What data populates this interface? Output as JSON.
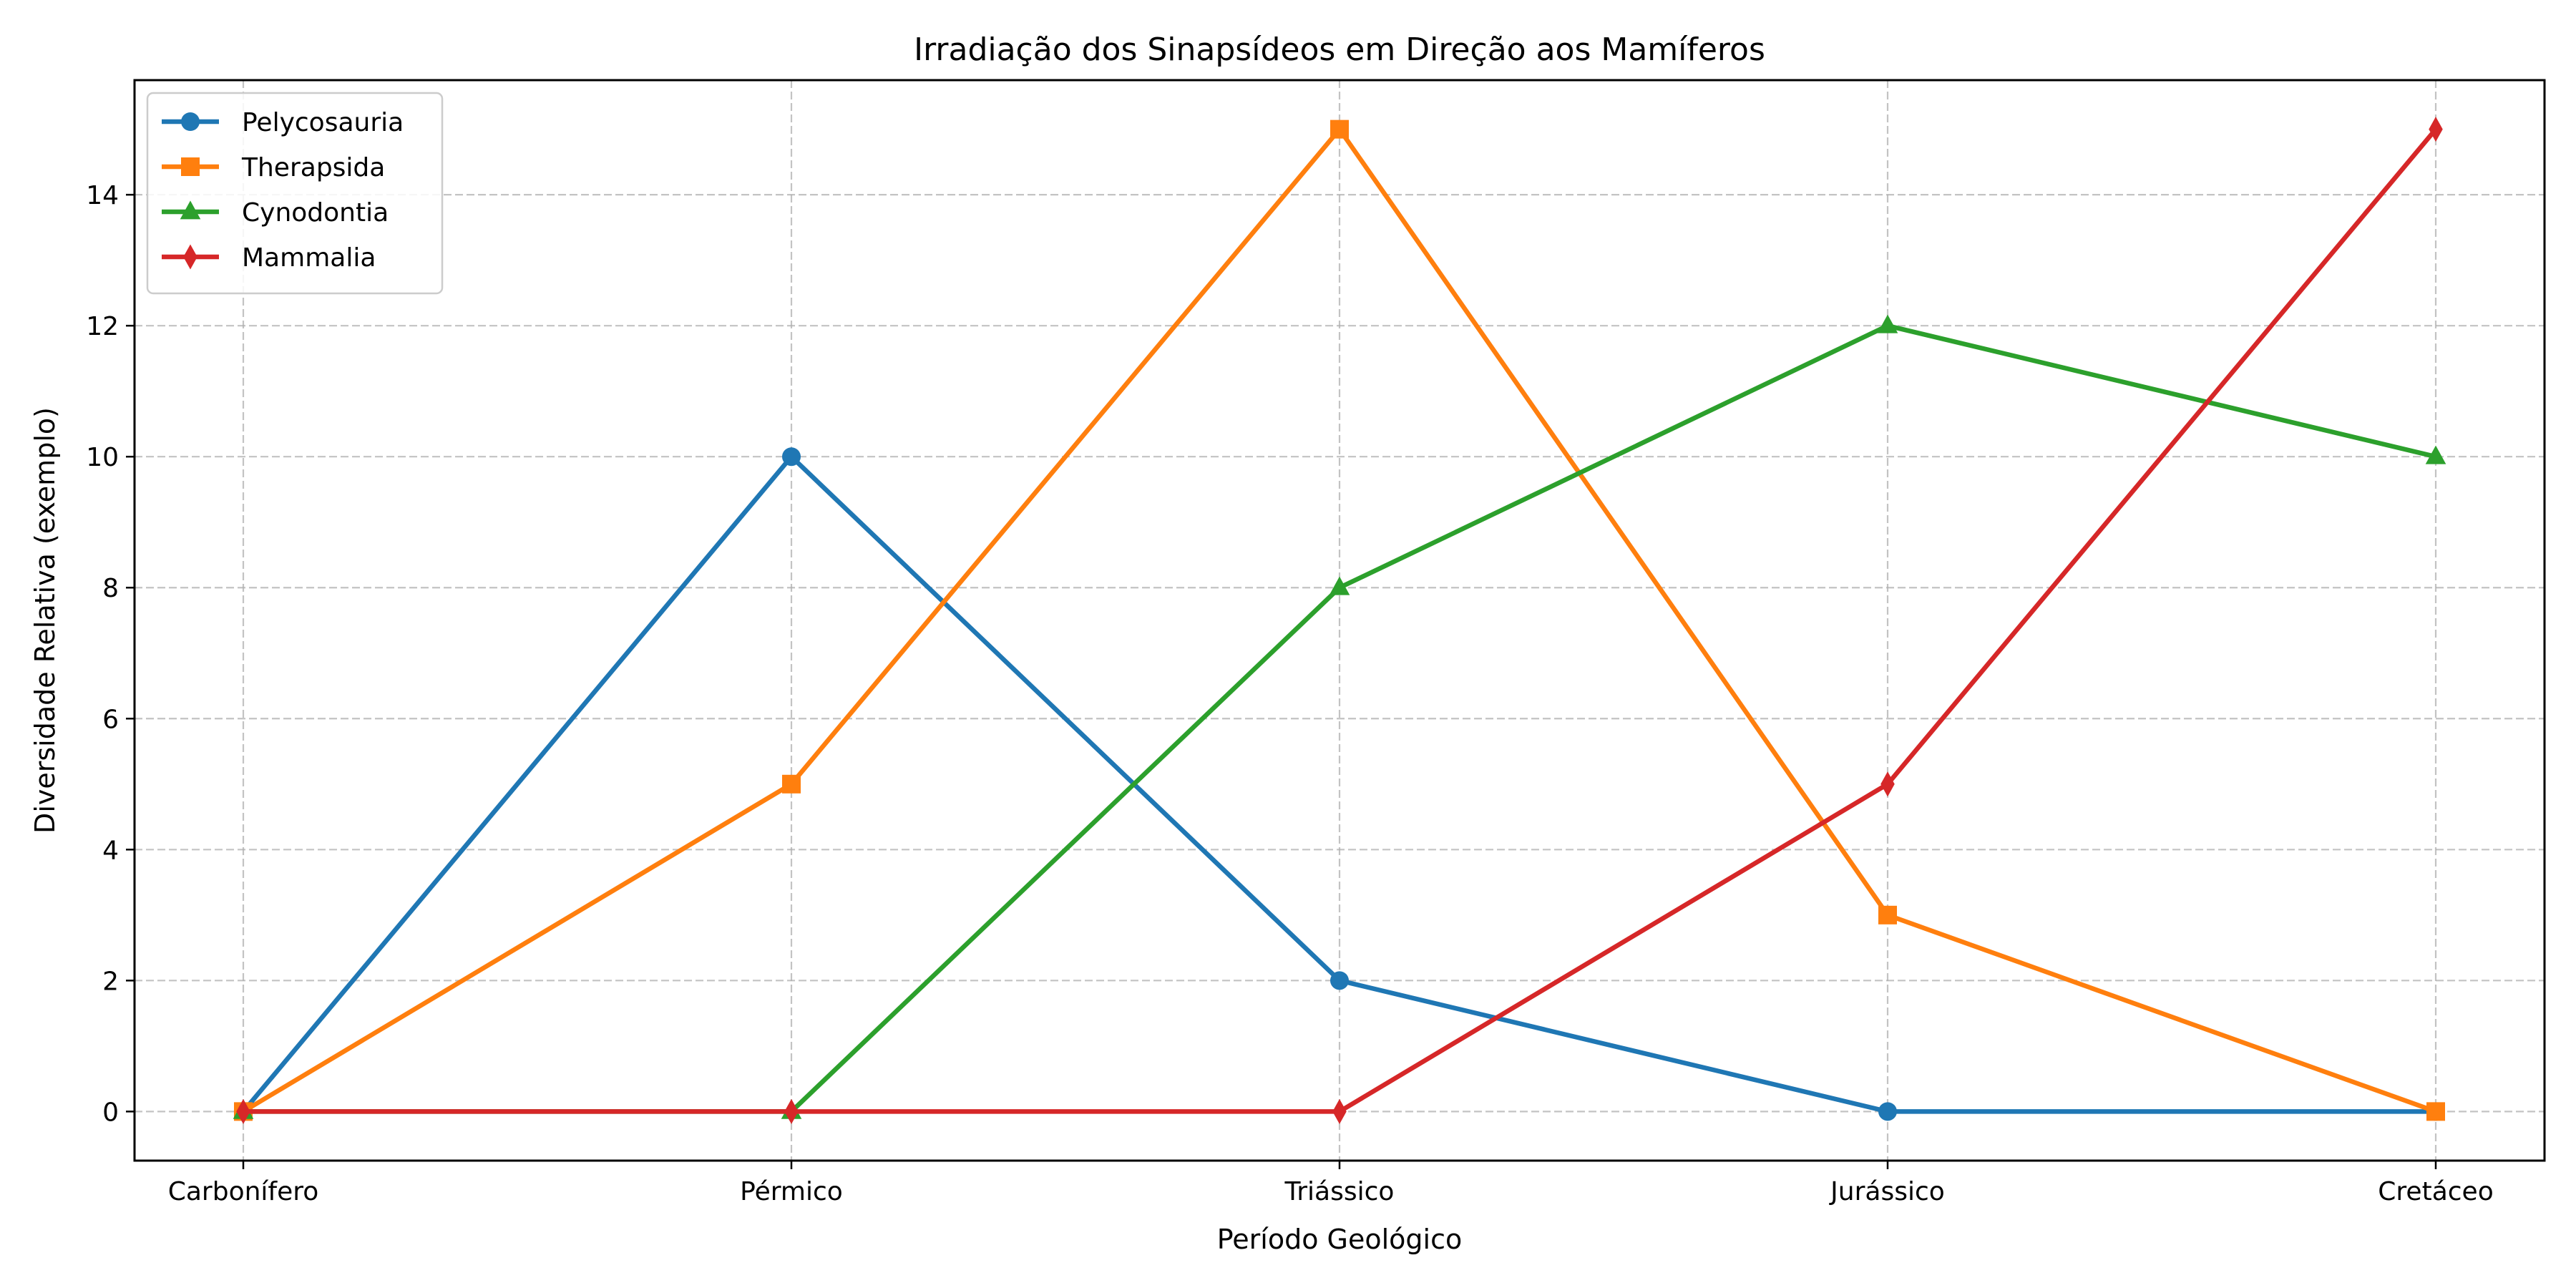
{
  "chart_data": {
    "type": "line",
    "title": "Irradiação dos Sinapsídeos em Direção aos Mamíferos",
    "xlabel": "Período Geológico",
    "ylabel": "Diversidade Relativa (exemplo)",
    "categories": [
      "Carbonífero",
      "Pérmico",
      "Triássico",
      "Jurássico",
      "Cretáceo"
    ],
    "ylim": [
      -0.75,
      15.75
    ],
    "yticks": [
      0,
      2,
      4,
      6,
      8,
      10,
      12,
      14
    ],
    "grid": true,
    "legend_position": "top-left",
    "series": [
      {
        "name": "Pelycosauria",
        "values": [
          0,
          10,
          2,
          0,
          0
        ],
        "color": "#1f77b4",
        "marker": "circle"
      },
      {
        "name": "Therapsida",
        "values": [
          0,
          5,
          15,
          3,
          0
        ],
        "color": "#ff7f0e",
        "marker": "square"
      },
      {
        "name": "Cynodontia",
        "values": [
          0,
          0,
          8,
          12,
          10
        ],
        "color": "#2ca02c",
        "marker": "triangle"
      },
      {
        "name": "Mammalia",
        "values": [
          0,
          0,
          0,
          5,
          15
        ],
        "color": "#d62728",
        "marker": "diamond"
      }
    ]
  }
}
